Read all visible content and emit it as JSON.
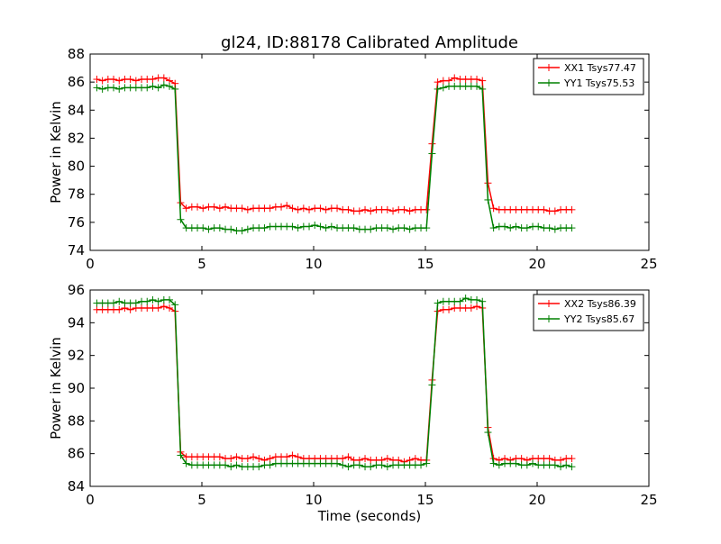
{
  "figure": {
    "title": "gl24, ID:88178 Calibrated Amplitude"
  },
  "chart_data": [
    {
      "type": "line",
      "title": "gl24, ID:88178 Calibrated Amplitude",
      "xlabel": "",
      "ylabel": "Power in Kelvin",
      "xlim": [
        0,
        25
      ],
      "ylim": [
        74,
        88
      ],
      "xticks": [
        0,
        5,
        10,
        15,
        20,
        25
      ],
      "yticks": [
        74,
        76,
        78,
        80,
        82,
        84,
        86,
        88
      ],
      "grid": false,
      "legend_position": "top-right",
      "x": [
        0.3,
        0.55,
        0.8,
        1.05,
        1.3,
        1.55,
        1.8,
        2.05,
        2.3,
        2.55,
        2.8,
        3.05,
        3.3,
        3.55,
        3.8,
        4.05,
        4.3,
        4.55,
        4.8,
        5.05,
        5.3,
        5.55,
        5.8,
        6.05,
        6.3,
        6.55,
        6.8,
        7.05,
        7.3,
        7.55,
        7.8,
        8.05,
        8.3,
        8.55,
        8.8,
        9.05,
        9.3,
        9.55,
        9.8,
        10.05,
        10.3,
        10.55,
        10.8,
        11.05,
        11.3,
        11.55,
        11.8,
        12.05,
        12.3,
        12.55,
        12.8,
        13.05,
        13.3,
        13.55,
        13.8,
        14.05,
        14.3,
        14.55,
        14.8,
        15.05,
        15.3,
        15.55,
        15.8,
        16.05,
        16.3,
        16.55,
        16.8,
        17.05,
        17.3,
        17.55,
        17.8,
        18.05,
        18.3,
        18.55,
        18.8,
        19.05,
        19.3,
        19.55,
        19.8,
        20.05,
        20.3,
        20.55,
        20.8,
        21.05,
        21.3,
        21.55
      ],
      "series": [
        {
          "name": "XX1 Tsys77.47",
          "color": "#ff0000",
          "values": [
            86.2,
            86.1,
            86.2,
            86.2,
            86.1,
            86.2,
            86.2,
            86.1,
            86.2,
            86.2,
            86.2,
            86.3,
            86.3,
            86.1,
            85.9,
            77.4,
            77.0,
            77.1,
            77.1,
            77.0,
            77.1,
            77.1,
            77.0,
            77.1,
            77.0,
            77.0,
            77.0,
            76.9,
            77.0,
            77.0,
            77.0,
            77.0,
            77.1,
            77.1,
            77.2,
            77.0,
            76.9,
            77.0,
            76.9,
            77.0,
            77.0,
            76.9,
            77.0,
            77.0,
            76.9,
            76.9,
            76.8,
            76.8,
            76.9,
            76.8,
            76.9,
            76.9,
            76.9,
            76.8,
            76.9,
            76.9,
            76.8,
            76.9,
            76.9,
            76.9,
            81.6,
            86.0,
            86.1,
            86.1,
            86.3,
            86.2,
            86.2,
            86.2,
            86.2,
            86.1,
            78.8,
            77.0,
            76.9,
            76.9,
            76.9,
            76.9,
            76.9,
            76.9,
            76.9,
            76.9,
            76.9,
            76.8,
            76.8,
            76.9,
            76.9,
            76.9
          ]
        },
        {
          "name": "YY1 Tsys75.53",
          "color": "#008000",
          "values": [
            85.6,
            85.5,
            85.6,
            85.6,
            85.5,
            85.6,
            85.6,
            85.6,
            85.6,
            85.6,
            85.7,
            85.6,
            85.8,
            85.7,
            85.5,
            76.2,
            75.6,
            75.6,
            75.6,
            75.6,
            75.5,
            75.6,
            75.6,
            75.5,
            75.5,
            75.4,
            75.4,
            75.5,
            75.6,
            75.6,
            75.6,
            75.7,
            75.7,
            75.7,
            75.7,
            75.7,
            75.6,
            75.7,
            75.7,
            75.8,
            75.7,
            75.6,
            75.7,
            75.6,
            75.6,
            75.6,
            75.6,
            75.5,
            75.5,
            75.5,
            75.6,
            75.6,
            75.6,
            75.5,
            75.6,
            75.6,
            75.5,
            75.6,
            75.6,
            75.6,
            80.9,
            85.5,
            85.6,
            85.7,
            85.7,
            85.7,
            85.7,
            85.7,
            85.7,
            85.5,
            77.6,
            75.6,
            75.7,
            75.7,
            75.6,
            75.7,
            75.6,
            75.6,
            75.7,
            75.7,
            75.6,
            75.6,
            75.5,
            75.6,
            75.6,
            75.6
          ]
        }
      ]
    },
    {
      "type": "line",
      "title": "",
      "xlabel": "Time (seconds)",
      "ylabel": "Power in Kelvin",
      "xlim": [
        0,
        25
      ],
      "ylim": [
        84,
        96
      ],
      "xticks": [
        0,
        5,
        10,
        15,
        20,
        25
      ],
      "yticks": [
        84,
        86,
        88,
        90,
        92,
        94,
        96
      ],
      "grid": false,
      "legend_position": "top-right",
      "x": [
        0.3,
        0.55,
        0.8,
        1.05,
        1.3,
        1.55,
        1.8,
        2.05,
        2.3,
        2.55,
        2.8,
        3.05,
        3.3,
        3.55,
        3.8,
        4.05,
        4.3,
        4.55,
        4.8,
        5.05,
        5.3,
        5.55,
        5.8,
        6.05,
        6.3,
        6.55,
        6.8,
        7.05,
        7.3,
        7.55,
        7.8,
        8.05,
        8.3,
        8.55,
        8.8,
        9.05,
        9.3,
        9.55,
        9.8,
        10.05,
        10.3,
        10.55,
        10.8,
        11.05,
        11.3,
        11.55,
        11.8,
        12.05,
        12.3,
        12.55,
        12.8,
        13.05,
        13.3,
        13.55,
        13.8,
        14.05,
        14.3,
        14.55,
        14.8,
        15.05,
        15.3,
        15.55,
        15.8,
        16.05,
        16.3,
        16.55,
        16.8,
        17.05,
        17.3,
        17.55,
        17.8,
        18.05,
        18.3,
        18.55,
        18.8,
        19.05,
        19.3,
        19.55,
        19.8,
        20.05,
        20.3,
        20.55,
        20.8,
        21.05,
        21.3,
        21.55
      ],
      "series": [
        {
          "name": "XX2 Tsys86.39",
          "color": "#ff0000",
          "values": [
            94.8,
            94.8,
            94.8,
            94.8,
            94.8,
            94.9,
            94.8,
            94.9,
            94.9,
            94.9,
            94.9,
            94.9,
            95.0,
            94.9,
            94.7,
            86.1,
            85.8,
            85.8,
            85.8,
            85.8,
            85.8,
            85.8,
            85.8,
            85.7,
            85.7,
            85.8,
            85.7,
            85.7,
            85.8,
            85.7,
            85.6,
            85.7,
            85.8,
            85.8,
            85.8,
            85.9,
            85.8,
            85.7,
            85.7,
            85.7,
            85.7,
            85.7,
            85.7,
            85.7,
            85.7,
            85.8,
            85.6,
            85.6,
            85.7,
            85.6,
            85.6,
            85.6,
            85.7,
            85.6,
            85.6,
            85.5,
            85.6,
            85.7,
            85.6,
            85.6,
            90.5,
            94.7,
            94.8,
            94.8,
            94.9,
            94.9,
            94.9,
            94.9,
            95.0,
            94.9,
            87.6,
            85.7,
            85.6,
            85.7,
            85.6,
            85.7,
            85.7,
            85.6,
            85.7,
            85.7,
            85.7,
            85.7,
            85.6,
            85.6,
            85.7,
            85.7
          ]
        },
        {
          "name": "YY2 Tsys85.67",
          "color": "#008000",
          "values": [
            95.2,
            95.2,
            95.2,
            95.2,
            95.3,
            95.2,
            95.2,
            95.2,
            95.3,
            95.3,
            95.4,
            95.3,
            95.4,
            95.4,
            95.1,
            85.9,
            85.4,
            85.3,
            85.3,
            85.3,
            85.3,
            85.3,
            85.3,
            85.3,
            85.2,
            85.3,
            85.2,
            85.2,
            85.2,
            85.2,
            85.3,
            85.3,
            85.4,
            85.4,
            85.4,
            85.4,
            85.4,
            85.4,
            85.4,
            85.4,
            85.4,
            85.4,
            85.4,
            85.4,
            85.3,
            85.2,
            85.3,
            85.3,
            85.2,
            85.2,
            85.3,
            85.3,
            85.2,
            85.3,
            85.3,
            85.3,
            85.3,
            85.3,
            85.3,
            85.4,
            90.2,
            95.2,
            95.3,
            95.3,
            95.3,
            95.3,
            95.5,
            95.4,
            95.4,
            95.3,
            87.3,
            85.4,
            85.3,
            85.4,
            85.4,
            85.4,
            85.3,
            85.3,
            85.4,
            85.3,
            85.3,
            85.3,
            85.3,
            85.2,
            85.3,
            85.2
          ]
        }
      ]
    }
  ]
}
